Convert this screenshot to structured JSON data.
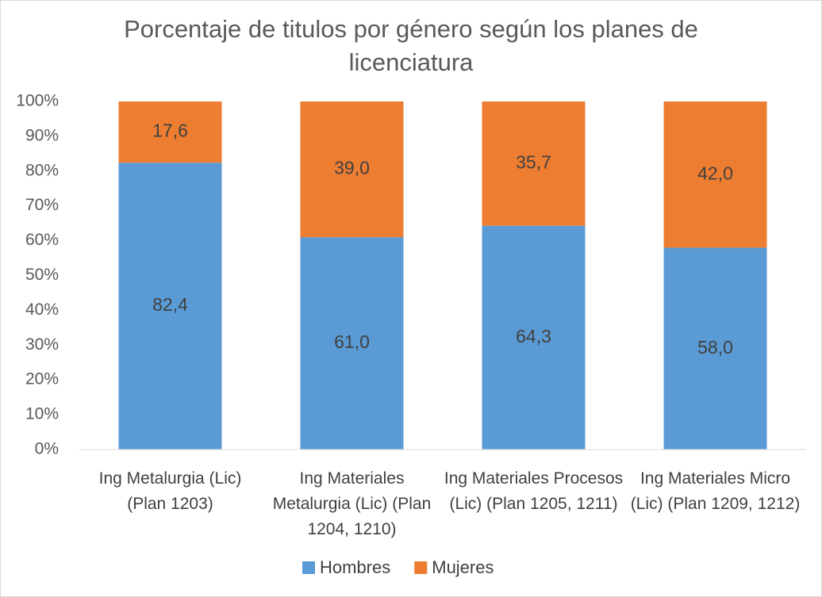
{
  "chart_data": {
    "type": "stacked_bar_100",
    "title": "Porcentaje de titulos por género según los planes de licenciatura",
    "categories": [
      "Ing Metalurgia (Lic) (Plan 1203)",
      "Ing Materiales Metalurgia (Lic) (Plan 1204, 1210)",
      "Ing Materiales Procesos (Lic) (Plan 1205, 1211)",
      "Ing Materiales Micro (Lic) (Plan 1209, 1212)"
    ],
    "series": [
      {
        "name": "Hombres",
        "color": "#5b9bd5",
        "values": [
          82.4,
          61.0,
          64.3,
          58.0
        ],
        "value_labels": [
          "82,4",
          "61,0",
          "64,3",
          "58,0"
        ]
      },
      {
        "name": "Mujeres",
        "color": "#ed7d31",
        "values": [
          17.6,
          39.0,
          35.7,
          42.0
        ],
        "value_labels": [
          "17,6",
          "39,0",
          "35,7",
          "42,0"
        ]
      }
    ],
    "ylim": [
      0,
      100
    ],
    "yticks": [
      {
        "value": 0,
        "label": "0%"
      },
      {
        "value": 10,
        "label": "10%"
      },
      {
        "value": 20,
        "label": "20%"
      },
      {
        "value": 30,
        "label": "30%"
      },
      {
        "value": 40,
        "label": "40%"
      },
      {
        "value": 50,
        "label": "50%"
      },
      {
        "value": 60,
        "label": "60%"
      },
      {
        "value": 70,
        "label": "70%"
      },
      {
        "value": 80,
        "label": "80%"
      },
      {
        "value": 90,
        "label": "90%"
      },
      {
        "value": 100,
        "label": "100%"
      }
    ],
    "grid": false,
    "legend": "bottom"
  }
}
